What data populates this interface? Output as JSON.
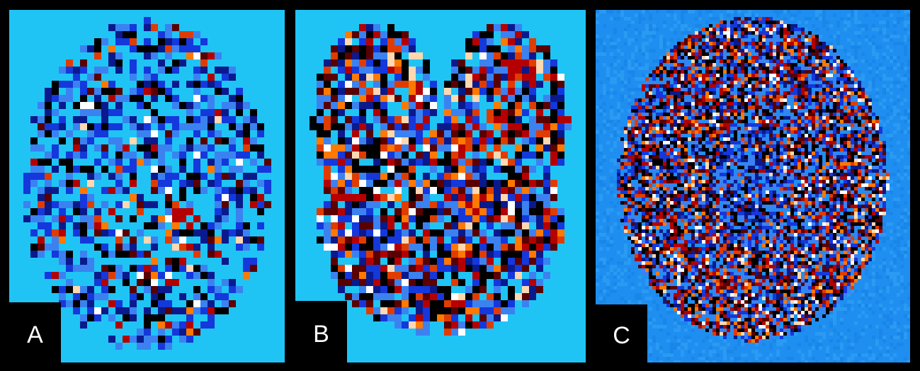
{
  "figure": {
    "panels": [
      {
        "id": "a",
        "label": "A"
      },
      {
        "id": "b",
        "label": "B"
      },
      {
        "id": "c",
        "label": "C"
      }
    ]
  },
  "colors": {
    "figure_background": "#000000",
    "panel_background": "#1fc4f5",
    "panel_c_background": "#1e8ff0",
    "map_palette": [
      "#1fc4f5",
      "#3b82f0",
      "#1438dc",
      "#0a1a8c",
      "#000000",
      "#5a0000",
      "#b40000",
      "#e03c00",
      "#ff7800",
      "#ffd8b0",
      "#ffffff"
    ]
  }
}
